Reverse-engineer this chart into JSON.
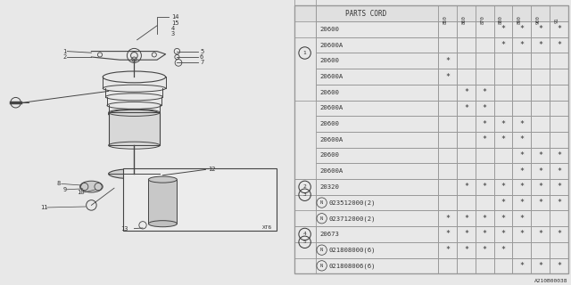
{
  "bg_color": "#e8e8e8",
  "table_header": "PARTS CORD",
  "col_years": [
    "850",
    "860",
    "870",
    "880",
    "890",
    "900",
    "91"
  ],
  "rows": [
    {
      "ref": "",
      "part": "20600",
      "marks": [
        false,
        false,
        false,
        true,
        true,
        true,
        true
      ]
    },
    {
      "ref": "",
      "part": "20600A",
      "marks": [
        false,
        false,
        false,
        true,
        true,
        true,
        true
      ]
    },
    {
      "ref": "",
      "part": "20600",
      "marks": [
        true,
        false,
        false,
        false,
        false,
        false,
        false
      ]
    },
    {
      "ref": "",
      "part": "20600A",
      "marks": [
        true,
        false,
        false,
        false,
        false,
        false,
        false
      ]
    },
    {
      "ref": "1",
      "part": "20600",
      "marks": [
        false,
        true,
        true,
        false,
        false,
        false,
        false
      ]
    },
    {
      "ref": "",
      "part": "20600A",
      "marks": [
        false,
        true,
        true,
        false,
        false,
        false,
        false
      ]
    },
    {
      "ref": "",
      "part": "20600",
      "marks": [
        false,
        false,
        true,
        true,
        true,
        false,
        false
      ]
    },
    {
      "ref": "",
      "part": "20600A",
      "marks": [
        false,
        false,
        true,
        true,
        true,
        false,
        false
      ]
    },
    {
      "ref": "",
      "part": "20600",
      "marks": [
        false,
        false,
        false,
        false,
        true,
        true,
        true
      ]
    },
    {
      "ref": "",
      "part": "20600A",
      "marks": [
        false,
        false,
        false,
        false,
        true,
        true,
        true
      ]
    },
    {
      "ref": "2",
      "part": "20320",
      "marks": [
        false,
        true,
        true,
        true,
        true,
        true,
        true
      ]
    },
    {
      "ref": "3",
      "part": "N023512000(2)",
      "marks": [
        false,
        false,
        false,
        true,
        true,
        true,
        true
      ]
    },
    {
      "ref": "",
      "part": "N023712000(2)",
      "marks": [
        true,
        true,
        true,
        true,
        true,
        false,
        false
      ]
    },
    {
      "ref": "4",
      "part": "20673",
      "marks": [
        true,
        true,
        true,
        true,
        true,
        true,
        true
      ]
    },
    {
      "ref": "5",
      "part": "N021808000(6)",
      "marks": [
        true,
        true,
        true,
        true,
        false,
        false,
        false
      ]
    },
    {
      "ref": "",
      "part": "N021808006(6)",
      "marks": [
        false,
        false,
        false,
        false,
        true,
        true,
        true
      ]
    }
  ],
  "ref_spans": [
    {
      "ref": "",
      "start": 0,
      "end": 4
    },
    {
      "ref": "1",
      "start": 4,
      "end": 10
    },
    {
      "ref": "2",
      "start": 10,
      "end": 11
    },
    {
      "ref": "3",
      "start": 11,
      "end": 13
    },
    {
      "ref": "4",
      "start": 13,
      "end": 14
    },
    {
      "ref": "5",
      "start": 14,
      "end": 16
    }
  ],
  "diagram_label": "A210B00038",
  "line_color": "#444444",
  "grid_color": "#999999",
  "text_color": "#333333",
  "bg_left": "#e8e8e8",
  "bg_right": "#f4f4f4"
}
